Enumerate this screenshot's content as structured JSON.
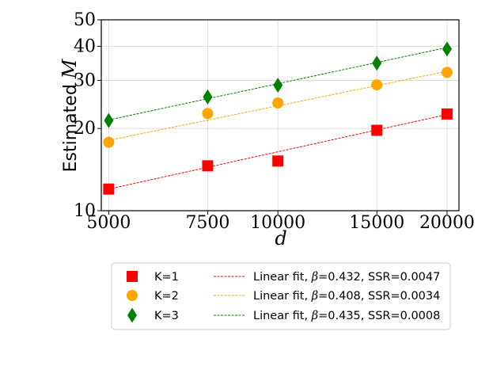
{
  "chart_data": {
    "type": "scatter",
    "xlabel": "d",
    "ylabel": {
      "prefix": "Estimated ",
      "variable": "M"
    },
    "xscale": "log",
    "yscale": "log",
    "xlim": [
      4850,
      21000
    ],
    "ylim": [
      10,
      50
    ],
    "grid": true,
    "x_ticks": [
      5000,
      7500,
      10000,
      15000,
      20000
    ],
    "x_tick_labels": [
      "5000",
      "7500",
      "10000",
      "15000",
      "20000"
    ],
    "y_ticks": [
      10,
      20,
      30,
      40,
      50
    ],
    "y_tick_labels": [
      "10",
      "20",
      "30",
      "40",
      "50"
    ],
    "x": [
      5000,
      7500,
      10000,
      15000,
      20000
    ],
    "legend_position": "below-center",
    "series": [
      {
        "name": "K=1",
        "marker": "square",
        "color": "#ff0000",
        "values": [
          12.0,
          14.6,
          15.2,
          19.7,
          22.6
        ],
        "fit": {
          "prefix": "Linear fit, ",
          "variable": "β",
          "suffix": "=0.432, SSR=0.0047",
          "color": "#ff0000",
          "start": 12.0,
          "end": 22.5
        }
      },
      {
        "name": "K=2",
        "marker": "circle",
        "color": "#ffa500",
        "values": [
          17.8,
          22.7,
          24.8,
          28.9,
          32.1
        ],
        "fit": {
          "prefix": "Linear fit, ",
          "variable": "β",
          "suffix": "=0.408, SSR=0.0034",
          "color": "#ffa500",
          "start": 18.1,
          "end": 32.4
        }
      },
      {
        "name": "K=3",
        "marker": "thin_diamond",
        "color": "#008000",
        "values": [
          21.4,
          26.1,
          28.8,
          34.7,
          39.1
        ],
        "fit": {
          "prefix": "Linear fit, ",
          "variable": "β",
          "suffix": "=0.435, SSR=0.0008",
          "color": "#008000",
          "start": 21.5,
          "end": 39.6
        }
      }
    ]
  }
}
